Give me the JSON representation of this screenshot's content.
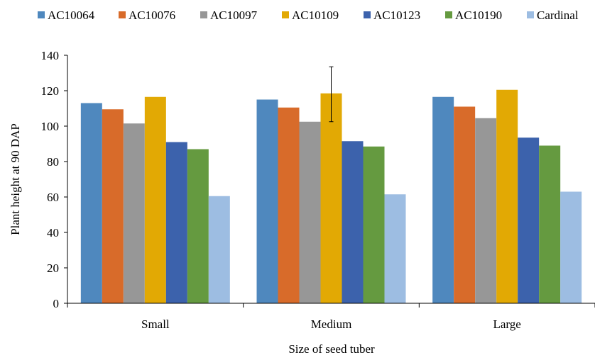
{
  "chart_data": {
    "type": "bar",
    "title": "",
    "xlabel": "Size of seed tuber",
    "ylabel": "Plant height at 90 DAP",
    "categories": [
      "Small",
      "Medium",
      "Large"
    ],
    "ylim": [
      0,
      140
    ],
    "yticks": [
      0,
      20,
      40,
      60,
      80,
      100,
      120,
      140
    ],
    "grid": false,
    "legend_position": "top",
    "series": [
      {
        "name": "AC10064",
        "color": "#4F88BE",
        "values": [
          113,
          115,
          116.5
        ]
      },
      {
        "name": "AC10076",
        "color": "#D86B2A",
        "values": [
          109.5,
          110.5,
          111
        ]
      },
      {
        "name": "AC10097",
        "color": "#979797",
        "values": [
          101.5,
          102.5,
          104.5
        ]
      },
      {
        "name": "AC10109",
        "color": "#E2A904",
        "values": [
          116.5,
          118.5,
          120.5
        ]
      },
      {
        "name": "AC10123",
        "color": "#3C62AC",
        "values": [
          91,
          91.5,
          93.5
        ]
      },
      {
        "name": "AC10190",
        "color": "#659A40",
        "values": [
          87,
          88.5,
          89
        ]
      },
      {
        "name": "Cardinal",
        "color": "#9DBDE2",
        "values": [
          60.5,
          61.5,
          63
        ]
      }
    ],
    "error_bars": [
      {
        "series": "AC10109",
        "category": "Medium",
        "low": 102.5,
        "high": 133.5
      }
    ]
  }
}
